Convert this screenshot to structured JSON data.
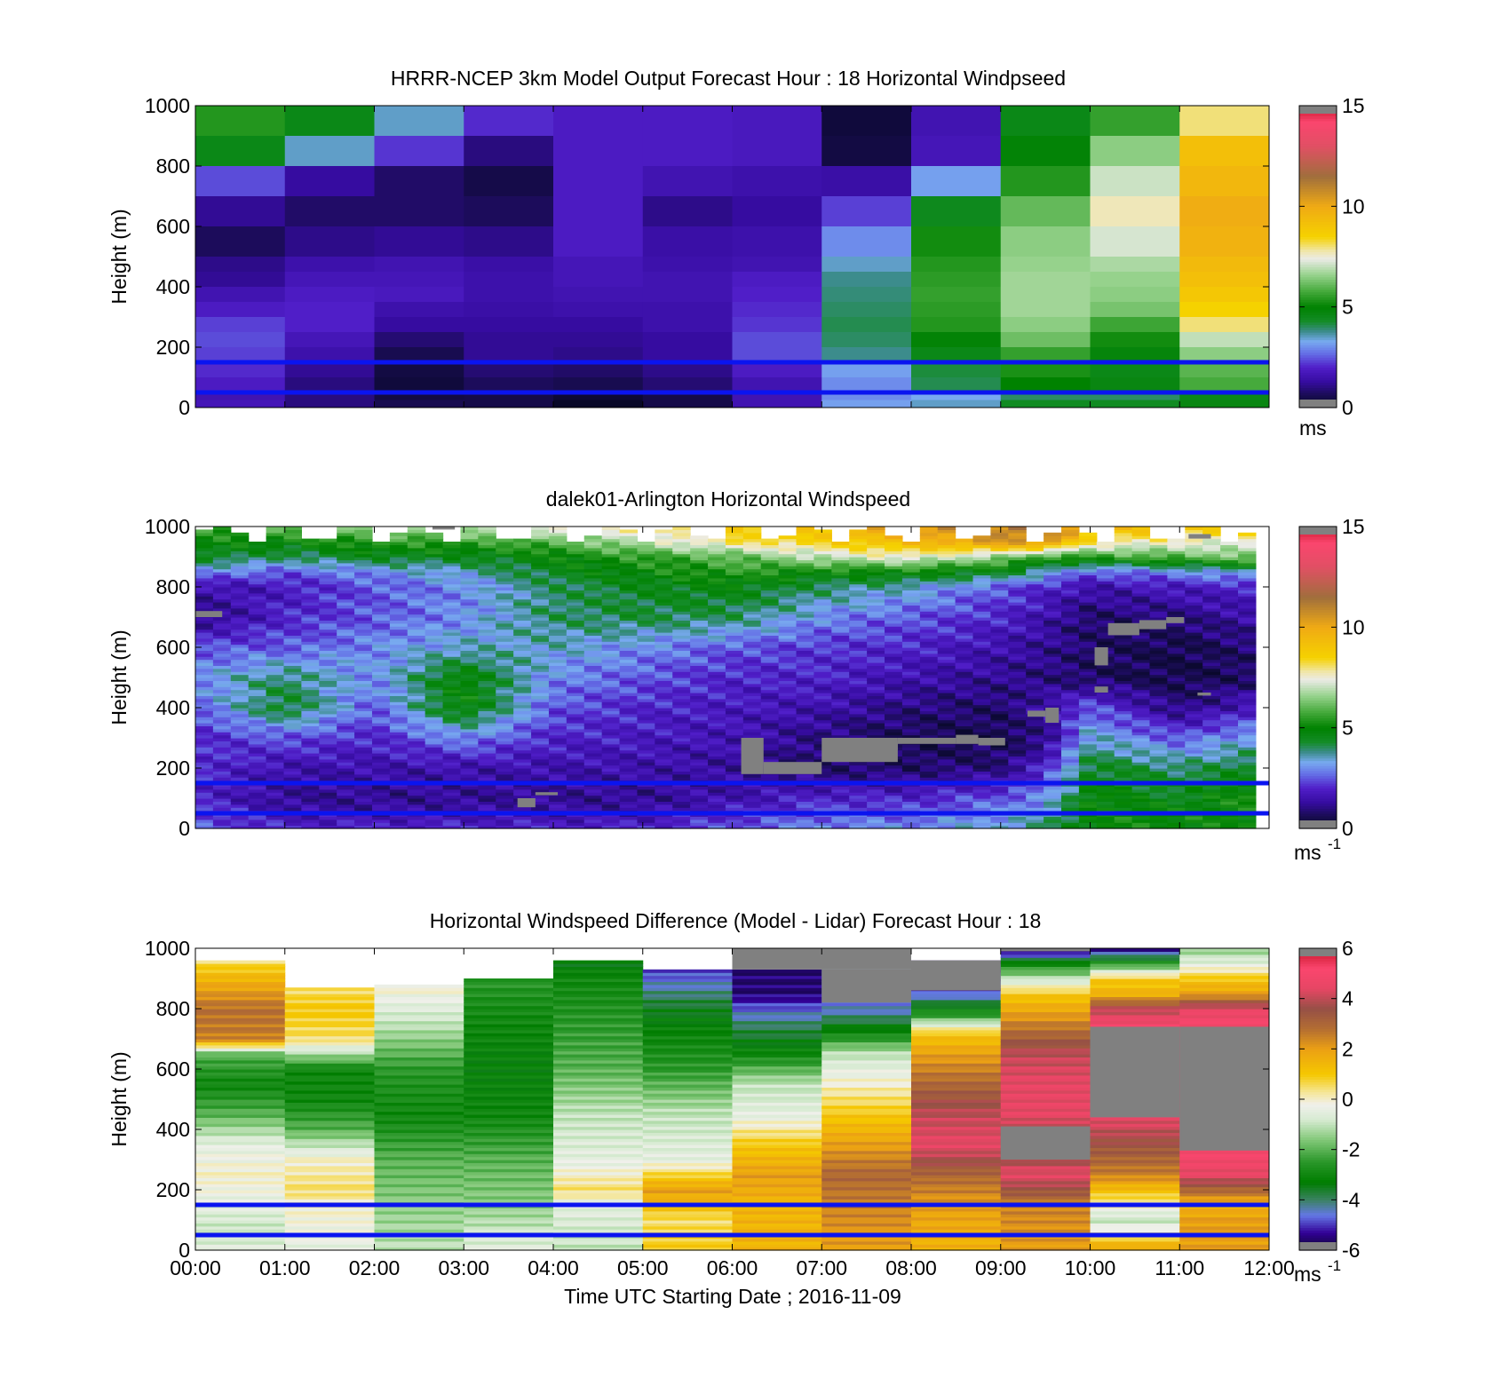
{
  "chart_data": [
    {
      "type": "heatmap",
      "title": "HRRR-NCEP 3km Model Output   Forecast Hour : 18 Horizontal Windpseed",
      "ylabel": "Height (m)",
      "ylim": [
        0,
        1000
      ],
      "yticks": [
        "0",
        "200",
        "400",
        "600",
        "800",
        "1000"
      ],
      "xlim_hours": [
        0,
        12
      ],
      "x_tick_labels_visible": false,
      "colorbar": {
        "min": 0,
        "max": 15,
        "ticks": [
          "0",
          "5",
          "10",
          "15"
        ],
        "unit_label": "ms",
        "unit_sup": "",
        "colormap": "speed"
      },
      "reference_lines_m": [
        50,
        150
      ],
      "reference_line_color": "#0a14f0",
      "grid": false,
      "heights": [
        1000,
        900,
        800,
        700,
        600,
        500,
        450,
        400,
        350,
        300,
        250,
        200,
        150,
        100,
        50,
        25
      ],
      "values": [
        [
          5.4,
          4.6,
          3.5,
          2.1,
          1.9,
          1.9,
          1.8,
          0.3,
          1.6,
          4.6,
          5.6,
          8.0
        ],
        [
          4.6,
          3.5,
          2.2,
          1.0,
          1.9,
          1.9,
          1.8,
          0.4,
          1.7,
          4.9,
          6.5,
          9.2
        ],
        [
          2.4,
          1.3,
          0.8,
          0.5,
          1.9,
          1.6,
          1.5,
          1.4,
          3.2,
          5.4,
          7.1,
          9.5
        ],
        [
          1.2,
          0.8,
          0.8,
          0.7,
          1.9,
          1.1,
          1.3,
          2.3,
          4.5,
          6.1,
          7.7,
          9.9
        ],
        [
          0.7,
          1.1,
          1.2,
          1.1,
          1.9,
          1.4,
          1.5,
          3.0,
          5.2,
          6.5,
          7.2,
          9.7
        ],
        [
          1.1,
          1.5,
          1.6,
          1.4,
          1.7,
          1.5,
          1.6,
          3.5,
          5.4,
          6.6,
          6.8,
          9.4
        ],
        [
          1.2,
          1.7,
          1.7,
          1.5,
          1.7,
          1.6,
          1.9,
          3.8,
          5.5,
          6.7,
          6.6,
          9.2
        ],
        [
          1.6,
          1.9,
          1.8,
          1.5,
          1.6,
          1.6,
          2.0,
          3.9,
          5.6,
          6.7,
          6.5,
          8.9
        ],
        [
          1.9,
          2.0,
          1.5,
          1.4,
          1.5,
          1.5,
          2.1,
          4.0,
          5.5,
          6.7,
          6.3,
          8.5
        ],
        [
          2.3,
          2.0,
          1.3,
          1.3,
          1.3,
          1.5,
          2.2,
          4.1,
          5.4,
          6.5,
          5.7,
          8.0
        ],
        [
          2.4,
          1.7,
          0.9,
          1.2,
          1.2,
          1.3,
          2.4,
          4.0,
          4.9,
          6.2,
          5.2,
          7.0
        ],
        [
          2.3,
          1.5,
          0.6,
          1.2,
          1.1,
          1.3,
          2.4,
          3.8,
          4.6,
          5.6,
          4.8,
          6.5
        ],
        [
          2.1,
          1.2,
          0.4,
          0.9,
          0.8,
          1.1,
          1.9,
          3.2,
          4.2,
          5.3,
          4.6,
          6.0
        ],
        [
          1.9,
          1.0,
          0.3,
          0.7,
          0.6,
          0.9,
          1.6,
          3.0,
          4.1,
          5.0,
          4.7,
          5.8
        ],
        [
          1.6,
          1.0,
          0.4,
          0.5,
          0.2,
          0.5,
          1.6,
          3.0,
          3.3,
          4.0,
          4.0,
          4.6
        ],
        [
          1.7,
          1.0,
          0.6,
          0.5,
          0.0,
          0.5,
          1.6,
          3.2,
          3.5,
          4.4,
          4.4,
          4.7
        ]
      ]
    },
    {
      "type": "heatmap",
      "title": "dalek01-Arlington  Horizontal Windspeed",
      "ylabel": "Height (m)",
      "ylim": [
        0,
        1000
      ],
      "yticks": [
        "0",
        "200",
        "400",
        "600",
        "800",
        "1000"
      ],
      "xlim_hours": [
        0,
        12
      ],
      "x_tick_labels_visible": false,
      "colorbar": {
        "min": 0,
        "max": 15,
        "ticks": [
          "0",
          "5",
          "10",
          "15"
        ],
        "unit_label": "ms",
        "unit_sup": "-1",
        "colormap": "speed"
      },
      "reference_lines_m": [
        50,
        150
      ],
      "reference_line_color": "#0a14f0",
      "grid": false,
      "anchor_hours": [
        0,
        1,
        2,
        3,
        4,
        5,
        6,
        7,
        8,
        9,
        9.5,
        10,
        11,
        12
      ],
      "anchor_heights": [
        1000,
        950,
        900,
        850,
        800,
        700,
        600,
        500,
        400,
        300,
        200,
        100,
        50,
        0
      ],
      "anchor_values": [
        [
          5.5,
          6.0,
          6.5,
          7.0,
          7.5,
          8.0,
          9.0,
          9.0,
          10.5,
          11.0,
          12.0,
          9.5,
          9.0,
          8.5
        ],
        [
          5.0,
          5.0,
          5.5,
          5.5,
          6.0,
          7.0,
          8.0,
          8.5,
          9.5,
          10.5,
          10.5,
          8.0,
          7.5,
          7.5
        ],
        [
          4.5,
          4.0,
          4.5,
          4.5,
          5.0,
          5.5,
          6.0,
          7.0,
          7.5,
          6.5,
          5.5,
          5.5,
          6.0,
          6.5
        ],
        [
          3.0,
          2.5,
          3.0,
          3.5,
          4.5,
          5.0,
          5.5,
          5.0,
          5.0,
          4.5,
          3.5,
          2.5,
          3.0,
          3.5
        ],
        [
          1.5,
          1.8,
          2.5,
          3.0,
          4.0,
          4.5,
          4.8,
          4.0,
          3.5,
          2.5,
          2.0,
          1.5,
          1.8,
          2.0
        ],
        [
          1.0,
          2.0,
          2.5,
          3.0,
          4.0,
          4.2,
          4.0,
          3.0,
          2.5,
          2.0,
          1.5,
          0.8,
          1.0,
          1.5
        ],
        [
          2.5,
          2.5,
          3.0,
          3.5,
          3.5,
          3.0,
          2.5,
          2.2,
          2.0,
          1.5,
          1.2,
          0.8,
          0.5,
          1.0
        ],
        [
          3.0,
          4.0,
          3.0,
          5.0,
          3.0,
          2.5,
          2.0,
          2.0,
          1.5,
          1.2,
          1.0,
          0.7,
          0.5,
          0.8
        ],
        [
          2.5,
          4.5,
          2.5,
          5.0,
          2.5,
          2.0,
          1.8,
          1.5,
          1.0,
          0.8,
          1.5,
          2.5,
          1.0,
          2.0
        ],
        [
          2.0,
          2.5,
          2.0,
          3.0,
          2.0,
          1.8,
          1.6,
          1.0,
          0.6,
          0.5,
          1.0,
          3.5,
          2.5,
          3.5
        ],
        [
          2.2,
          1.5,
          1.5,
          1.5,
          1.5,
          1.5,
          1.3,
          0.8,
          0.8,
          1.0,
          2.0,
          4.5,
          4.0,
          4.5
        ],
        [
          2.0,
          1.2,
          1.2,
          1.2,
          1.2,
          1.2,
          1.5,
          2.0,
          2.0,
          2.5,
          3.0,
          5.0,
          4.5,
          5.5
        ],
        [
          2.5,
          1.5,
          1.5,
          1.5,
          1.5,
          1.5,
          2.0,
          2.5,
          2.5,
          3.0,
          3.5,
          5.0,
          5.0,
          5.0
        ],
        [
          2.5,
          2.0,
          2.0,
          2.0,
          2.0,
          2.0,
          2.5,
          3.0,
          3.0,
          3.5,
          4.0,
          5.0,
          5.0,
          5.0
        ]
      ],
      "missing_value_regions": [
        {
          "t0": 7.2,
          "t1": 7.85,
          "h0": 260,
          "h1": 290
        },
        {
          "t0": 6.35,
          "t1": 7.0,
          "h0": 180,
          "h1": 220
        },
        {
          "t0": 6.1,
          "t1": 6.35,
          "h0": 180,
          "h1": 300
        },
        {
          "t0": 7.0,
          "t1": 7.85,
          "h0": 220,
          "h1": 300
        },
        {
          "t0": 7.85,
          "t1": 8.5,
          "h0": 280,
          "h1": 300
        },
        {
          "t0": 8.5,
          "t1": 8.75,
          "h0": 280,
          "h1": 310
        },
        {
          "t0": 8.75,
          "t1": 9.05,
          "h0": 275,
          "h1": 300
        },
        {
          "t0": 9.3,
          "t1": 9.5,
          "h0": 370,
          "h1": 390
        },
        {
          "t0": 9.5,
          "t1": 9.65,
          "h0": 350,
          "h1": 400
        },
        {
          "t0": 10.05,
          "t1": 10.2,
          "h0": 540,
          "h1": 600
        },
        {
          "t0": 10.05,
          "t1": 10.2,
          "h0": 450,
          "h1": 470
        },
        {
          "t0": 10.2,
          "t1": 10.55,
          "h0": 640,
          "h1": 680
        },
        {
          "t0": 10.55,
          "t1": 10.85,
          "h0": 660,
          "h1": 690
        },
        {
          "t0": 10.85,
          "t1": 11.05,
          "h0": 680,
          "h1": 700
        },
        {
          "t0": 11.2,
          "t1": 11.35,
          "h0": 440,
          "h1": 450
        },
        {
          "t0": 3.6,
          "t1": 3.8,
          "h0": 70,
          "h1": 100
        },
        {
          "t0": 3.8,
          "t1": 4.05,
          "h0": 110,
          "h1": 120
        },
        {
          "t0": 0.0,
          "t1": 0.3,
          "h0": 700,
          "h1": 720
        },
        {
          "t0": 2.65,
          "t1": 2.9,
          "h0": 990,
          "h1": 1000
        },
        {
          "t0": 11.1,
          "t1": 11.35,
          "h0": 960,
          "h1": 975
        }
      ]
    },
    {
      "type": "heatmap",
      "title": "Horizontal Windspeed Difference (Model - Lidar) Forecast Hour : 18",
      "xlabel": "Time UTC  Starting Date ; 2016-11-09",
      "ylabel": "Height (m)",
      "ylim": [
        0,
        1000
      ],
      "yticks": [
        "0",
        "200",
        "400",
        "600",
        "800",
        "1000"
      ],
      "xlim_hours": [
        0,
        12
      ],
      "x_tick_labels": [
        "00:00",
        "01:00",
        "02:00",
        "03:00",
        "04:00",
        "05:00",
        "06:00",
        "07:00",
        "08:00",
        "09:00",
        "10:00",
        "11:00",
        "12:00"
      ],
      "colorbar": {
        "min": -6,
        "max": 6,
        "ticks": [
          "-6",
          "-4",
          "-2",
          "0",
          "2",
          "4",
          "6"
        ],
        "unit_label": "ms",
        "unit_sup": "-1",
        "colormap": "diff"
      },
      "reference_lines_m": [
        50,
        150
      ],
      "reference_line_color": "#0a14f0",
      "grid": false,
      "column_tops_m": [
        960,
        870,
        880,
        900,
        960,
        930,
        930,
        930,
        960,
        1000,
        1000,
        1000
      ],
      "missing_value_regions": [
        {
          "t0": 6,
          "t1": 8,
          "h0": 930,
          "h1": 1000
        },
        {
          "t0": 7,
          "t1": 8,
          "h0": 820,
          "h1": 930
        },
        {
          "t0": 8,
          "t1": 9,
          "h0": 860,
          "h1": 960
        },
        {
          "t0": 9,
          "t1": 10,
          "h0": 990,
          "h1": 1000
        },
        {
          "t0": 9,
          "t1": 10,
          "h0": 300,
          "h1": 410
        },
        {
          "t0": 10,
          "t1": 11,
          "h0": 440,
          "h1": 740
        },
        {
          "t0": 11,
          "t1": 12,
          "h0": 330,
          "h1": 740
        }
      ],
      "profiles": [
        [
          [
            0,
            -0.5
          ],
          [
            60,
            -1.0
          ],
          [
            150,
            -0.5
          ],
          [
            250,
            0.0
          ],
          [
            350,
            -0.5
          ],
          [
            450,
            -2.0
          ],
          [
            550,
            -3.0
          ],
          [
            650,
            -2.0
          ],
          [
            700,
            2.5
          ],
          [
            800,
            2.8
          ],
          [
            900,
            1.5
          ],
          [
            960,
            0.5
          ]
        ],
        [
          [
            0,
            -0.5
          ],
          [
            150,
            0.0
          ],
          [
            200,
            0.5
          ],
          [
            300,
            0.0
          ],
          [
            400,
            -2.0
          ],
          [
            500,
            -3.0
          ],
          [
            600,
            -3.0
          ],
          [
            700,
            0.5
          ],
          [
            800,
            1.0
          ],
          [
            870,
            0.5
          ]
        ],
        [
          [
            0,
            -1.0
          ],
          [
            150,
            -1.5
          ],
          [
            300,
            -2.0
          ],
          [
            450,
            -3.0
          ],
          [
            600,
            -2.5
          ],
          [
            750,
            -1.0
          ],
          [
            880,
            0.0
          ]
        ],
        [
          [
            0,
            -0.5
          ],
          [
            150,
            -1.5
          ],
          [
            300,
            -2.0
          ],
          [
            450,
            -3.0
          ],
          [
            600,
            -3.2
          ],
          [
            750,
            -3.0
          ],
          [
            900,
            -2.5
          ]
        ],
        [
          [
            0,
            -1.0
          ],
          [
            150,
            -0.5
          ],
          [
            200,
            0.5
          ],
          [
            300,
            -0.5
          ],
          [
            450,
            -1.0
          ],
          [
            600,
            -2.0
          ],
          [
            750,
            -2.5
          ],
          [
            900,
            -3.0
          ],
          [
            960,
            -3.5
          ]
        ],
        [
          [
            0,
            1.0
          ],
          [
            100,
            0.5
          ],
          [
            200,
            2.0
          ],
          [
            300,
            -0.5
          ],
          [
            450,
            -1.0
          ],
          [
            600,
            -2.5
          ],
          [
            700,
            -3.0
          ],
          [
            800,
            -3.5
          ],
          [
            930,
            -5.0
          ]
        ],
        [
          [
            0,
            1.5
          ],
          [
            150,
            1.5
          ],
          [
            250,
            2.0
          ],
          [
            350,
            1.0
          ],
          [
            450,
            -0.5
          ],
          [
            550,
            -1.0
          ],
          [
            650,
            -3.0
          ],
          [
            750,
            -4.0
          ],
          [
            850,
            -5.5
          ]
        ],
        [
          [
            0,
            2.0
          ],
          [
            150,
            2.5
          ],
          [
            250,
            3.0
          ],
          [
            350,
            2.0
          ],
          [
            450,
            1.0
          ],
          [
            550,
            0.0
          ],
          [
            650,
            -1.0
          ],
          [
            720,
            -3.0
          ],
          [
            800,
            -4.5
          ]
        ],
        [
          [
            0,
            1.5
          ],
          [
            150,
            2.0
          ],
          [
            250,
            3.0
          ],
          [
            350,
            4.5
          ],
          [
            450,
            4.0
          ],
          [
            550,
            3.0
          ],
          [
            650,
            2.0
          ],
          [
            720,
            1.0
          ],
          [
            780,
            -2.5
          ],
          [
            860,
            -5.0
          ]
        ],
        [
          [
            0,
            2.0
          ],
          [
            150,
            2.5
          ],
          [
            250,
            4.5
          ],
          [
            350,
            3.0
          ],
          [
            450,
            4.5
          ],
          [
            550,
            4.5
          ],
          [
            650,
            4.0
          ],
          [
            750,
            2.5
          ],
          [
            850,
            1.0
          ],
          [
            950,
            -3.0
          ],
          [
            990,
            -5.5
          ]
        ],
        [
          [
            0,
            2.0
          ],
          [
            100,
            -1.0
          ],
          [
            150,
            0.0
          ],
          [
            250,
            2.5
          ],
          [
            350,
            3.5
          ],
          [
            440,
            4.5
          ],
          [
            740,
            5.0
          ],
          [
            800,
            4.0
          ],
          [
            850,
            1.5
          ],
          [
            900,
            1.0
          ],
          [
            950,
            -2.5
          ],
          [
            1000,
            -5.5
          ]
        ],
        [
          [
            0,
            2.0
          ],
          [
            100,
            2.0
          ],
          [
            150,
            1.5
          ],
          [
            250,
            4.5
          ],
          [
            330,
            5.0
          ],
          [
            740,
            5.0
          ],
          [
            800,
            4.5
          ],
          [
            850,
            2.0
          ],
          [
            900,
            1.0
          ],
          [
            950,
            -0.5
          ],
          [
            1000,
            -1.5
          ]
        ]
      ]
    }
  ]
}
